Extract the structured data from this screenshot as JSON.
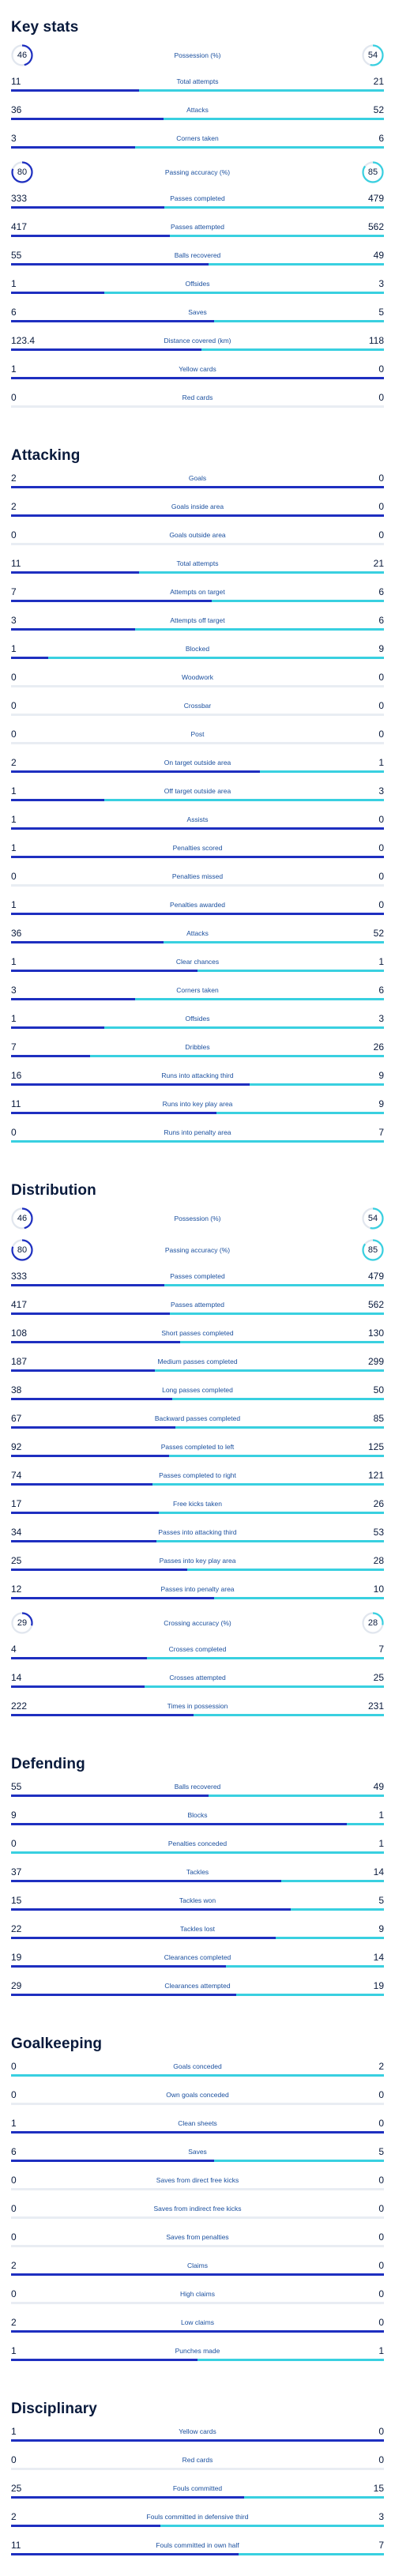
{
  "colors": {
    "home": "#1e2fc0",
    "away": "#39d0e0"
  },
  "sections": [
    {
      "title": "Key stats",
      "rows": [
        {
          "label": "Possession (%)",
          "home": "46",
          "away": "54",
          "circle": true
        },
        {
          "label": "Total attempts",
          "home": "11",
          "away": "21"
        },
        {
          "label": "Attacks",
          "home": "36",
          "away": "52"
        },
        {
          "label": "Corners taken",
          "home": "3",
          "away": "6"
        },
        {
          "label": "Passing accuracy (%)",
          "home": "80",
          "away": "85",
          "circle": true
        },
        {
          "label": "Passes completed",
          "home": "333",
          "away": "479"
        },
        {
          "label": "Passes attempted",
          "home": "417",
          "away": "562"
        },
        {
          "label": "Balls recovered",
          "home": "55",
          "away": "49"
        },
        {
          "label": "Offsides",
          "home": "1",
          "away": "3"
        },
        {
          "label": "Saves",
          "home": "6",
          "away": "5"
        },
        {
          "label": "Distance covered (km)",
          "home": "123.4",
          "away": "118"
        },
        {
          "label": "Yellow cards",
          "home": "1",
          "away": "0"
        },
        {
          "label": "Red cards",
          "home": "0",
          "away": "0"
        }
      ]
    },
    {
      "title": "Attacking",
      "rows": [
        {
          "label": "Goals",
          "home": "2",
          "away": "0"
        },
        {
          "label": "Goals inside area",
          "home": "2",
          "away": "0"
        },
        {
          "label": "Goals outside area",
          "home": "0",
          "away": "0"
        },
        {
          "label": "Total attempts",
          "home": "11",
          "away": "21"
        },
        {
          "label": "Attempts on target",
          "home": "7",
          "away": "6"
        },
        {
          "label": "Attempts off target",
          "home": "3",
          "away": "6"
        },
        {
          "label": "Blocked",
          "home": "1",
          "away": "9"
        },
        {
          "label": "Woodwork",
          "home": "0",
          "away": "0"
        },
        {
          "label": "Crossbar",
          "home": "0",
          "away": "0"
        },
        {
          "label": "Post",
          "home": "0",
          "away": "0"
        },
        {
          "label": "On target outside area",
          "home": "2",
          "away": "1"
        },
        {
          "label": "Off target outside area",
          "home": "1",
          "away": "3"
        },
        {
          "label": "Assists",
          "home": "1",
          "away": "0"
        },
        {
          "label": "Penalties scored",
          "home": "1",
          "away": "0"
        },
        {
          "label": "Penalties missed",
          "home": "0",
          "away": "0"
        },
        {
          "label": "Penalties awarded",
          "home": "1",
          "away": "0"
        },
        {
          "label": "Attacks",
          "home": "36",
          "away": "52"
        },
        {
          "label": "Clear chances",
          "home": "1",
          "away": "1"
        },
        {
          "label": "Corners taken",
          "home": "3",
          "away": "6"
        },
        {
          "label": "Offsides",
          "home": "1",
          "away": "3"
        },
        {
          "label": "Dribbles",
          "home": "7",
          "away": "26"
        },
        {
          "label": "Runs into attacking third",
          "home": "16",
          "away": "9"
        },
        {
          "label": "Runs into key play area",
          "home": "11",
          "away": "9"
        },
        {
          "label": "Runs into penalty area",
          "home": "0",
          "away": "7"
        }
      ]
    },
    {
      "title": "Distribution",
      "rows": [
        {
          "label": "Possession (%)",
          "home": "46",
          "away": "54",
          "circle": true
        },
        {
          "label": "Passing accuracy (%)",
          "home": "80",
          "away": "85",
          "circle": true
        },
        {
          "label": "Passes completed",
          "home": "333",
          "away": "479"
        },
        {
          "label": "Passes attempted",
          "home": "417",
          "away": "562"
        },
        {
          "label": "Short passes completed",
          "home": "108",
          "away": "130"
        },
        {
          "label": "Medium passes completed",
          "home": "187",
          "away": "299"
        },
        {
          "label": "Long passes completed",
          "home": "38",
          "away": "50"
        },
        {
          "label": "Backward passes completed",
          "home": "67",
          "away": "85"
        },
        {
          "label": "Passes completed to left",
          "home": "92",
          "away": "125"
        },
        {
          "label": "Passes completed to right",
          "home": "74",
          "away": "121"
        },
        {
          "label": "Free kicks taken",
          "home": "17",
          "away": "26"
        },
        {
          "label": "Passes into attacking third",
          "home": "34",
          "away": "53"
        },
        {
          "label": "Passes into key play area",
          "home": "25",
          "away": "28"
        },
        {
          "label": "Passes into penalty area",
          "home": "12",
          "away": "10"
        },
        {
          "label": "Crossing accuracy (%)",
          "home": "29",
          "away": "28",
          "circle": true
        },
        {
          "label": "Crosses completed",
          "home": "4",
          "away": "7"
        },
        {
          "label": "Crosses attempted",
          "home": "14",
          "away": "25"
        },
        {
          "label": "Times in possession",
          "home": "222",
          "away": "231"
        }
      ]
    },
    {
      "title": "Defending",
      "rows": [
        {
          "label": "Balls recovered",
          "home": "55",
          "away": "49"
        },
        {
          "label": "Blocks",
          "home": "9",
          "away": "1"
        },
        {
          "label": "Penalties conceded",
          "home": "0",
          "away": "1"
        },
        {
          "label": "Tackles",
          "home": "37",
          "away": "14"
        },
        {
          "label": "Tackles won",
          "home": "15",
          "away": "5"
        },
        {
          "label": "Tackles lost",
          "home": "22",
          "away": "9"
        },
        {
          "label": "Clearances completed",
          "home": "19",
          "away": "14"
        },
        {
          "label": "Clearances attempted",
          "home": "29",
          "away": "19"
        }
      ]
    },
    {
      "title": "Goalkeeping",
      "rows": [
        {
          "label": "Goals conceded",
          "home": "0",
          "away": "2"
        },
        {
          "label": "Own goals conceded",
          "home": "0",
          "away": "0"
        },
        {
          "label": "Clean sheets",
          "home": "1",
          "away": "0"
        },
        {
          "label": "Saves",
          "home": "6",
          "away": "5"
        },
        {
          "label": "Saves from direct free kicks",
          "home": "0",
          "away": "0"
        },
        {
          "label": "Saves from indirect free kicks",
          "home": "0",
          "away": "0"
        },
        {
          "label": "Saves from penalties",
          "home": "0",
          "away": "0"
        },
        {
          "label": "Claims",
          "home": "2",
          "away": "0"
        },
        {
          "label": "High claims",
          "home": "0",
          "away": "0"
        },
        {
          "label": "Low claims",
          "home": "2",
          "away": "0"
        },
        {
          "label": "Punches made",
          "home": "1",
          "away": "1"
        }
      ]
    },
    {
      "title": "Disciplinary",
      "rows": [
        {
          "label": "Yellow cards",
          "home": "1",
          "away": "0"
        },
        {
          "label": "Red cards",
          "home": "0",
          "away": "0"
        },
        {
          "label": "Fouls committed",
          "home": "25",
          "away": "15"
        },
        {
          "label": "Fouls committed in defensive third",
          "home": "2",
          "away": "3"
        },
        {
          "label": "Fouls committed in own half",
          "home": "11",
          "away": "7"
        }
      ]
    }
  ]
}
